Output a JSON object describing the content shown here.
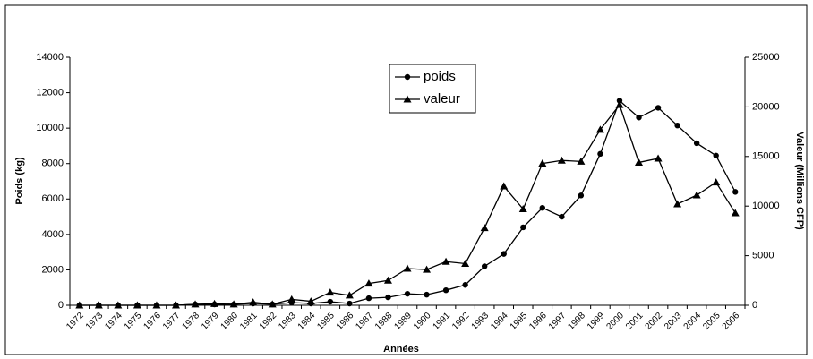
{
  "chart_data": {
    "type": "line",
    "x_label": "Années",
    "y_label": "Poids (kg)",
    "y2_label": "Valeur (Millions CFP)",
    "categories": [
      "1972",
      "1973",
      "1974",
      "1975",
      "1976",
      "1977",
      "1978",
      "1979",
      "1980",
      "1981",
      "1982",
      "1983",
      "1984",
      "1985",
      "1986",
      "1987",
      "1988",
      "1989",
      "1990",
      "1991",
      "1992",
      "1993",
      "1994",
      "1995",
      "1996",
      "1997",
      "1998",
      "1999",
      "2000",
      "2001",
      "2002",
      "2003",
      "2004",
      "2005",
      "2006"
    ],
    "series": [
      {
        "name": "poids",
        "color": "#000000",
        "marker": "circle",
        "axis": "y",
        "values": [
          0,
          0,
          0,
          0,
          0,
          0,
          50,
          50,
          50,
          100,
          50,
          150,
          100,
          200,
          100,
          400,
          450,
          650,
          600,
          850,
          1150,
          2200,
          2900,
          4400,
          5500,
          5000,
          6200,
          8550,
          11550,
          10600,
          11150,
          10150,
          9150,
          8450,
          6400
        ]
      },
      {
        "name": "valeur",
        "color": "#000000",
        "marker": "triangle",
        "axis": "y2",
        "values": [
          0,
          0,
          0,
          0,
          0,
          0,
          100,
          150,
          100,
          300,
          100,
          600,
          400,
          1300,
          1000,
          2200,
          2500,
          3700,
          3600,
          4400,
          4200,
          7800,
          12000,
          9700,
          14300,
          14600,
          14500,
          17700,
          20200,
          14400,
          14800,
          10200,
          11100,
          12400,
          9300
        ]
      }
    ],
    "ylim": [
      0,
      14000
    ],
    "yticks": [
      0,
      2000,
      4000,
      6000,
      8000,
      10000,
      12000,
      14000
    ],
    "y2lim": [
      0,
      25000
    ],
    "y2ticks": [
      0,
      5000,
      10000,
      15000,
      20000,
      25000
    ],
    "grid": false,
    "legend": "top"
  }
}
